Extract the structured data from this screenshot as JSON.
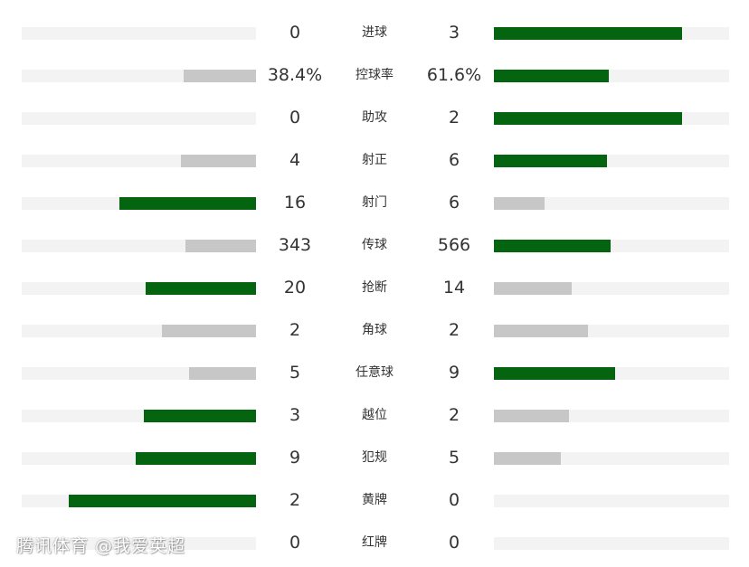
{
  "colors": {
    "leading": "#056410",
    "trailing": "#c7c7c7",
    "track": "#f3f3f3"
  },
  "stats": [
    {
      "label": "进球",
      "home": "0",
      "away": "3",
      "home_share": 0,
      "away_share": 0.8,
      "home_lead": false,
      "away_lead": true
    },
    {
      "label": "控球率",
      "home": "38.4%",
      "away": "61.6%",
      "home_share": 0.31,
      "away_share": 0.49,
      "home_lead": false,
      "away_lead": true
    },
    {
      "label": "助攻",
      "home": "0",
      "away": "2",
      "home_share": 0,
      "away_share": 0.8,
      "home_lead": false,
      "away_lead": true
    },
    {
      "label": "射正",
      "home": "4",
      "away": "6",
      "home_share": 0.32,
      "away_share": 0.48,
      "home_lead": false,
      "away_lead": true
    },
    {
      "label": "射门",
      "home": "16",
      "away": "6",
      "home_share": 0.585,
      "away_share": 0.215,
      "home_lead": true,
      "away_lead": false
    },
    {
      "label": "传球",
      "home": "343",
      "away": "566",
      "home_share": 0.3,
      "away_share": 0.495,
      "home_lead": false,
      "away_lead": true
    },
    {
      "label": "抢断",
      "home": "20",
      "away": "14",
      "home_share": 0.47,
      "away_share": 0.33,
      "home_lead": true,
      "away_lead": false
    },
    {
      "label": "角球",
      "home": "2",
      "away": "2",
      "home_share": 0.4,
      "away_share": 0.4,
      "home_lead": false,
      "away_lead": false
    },
    {
      "label": "任意球",
      "home": "5",
      "away": "9",
      "home_share": 0.285,
      "away_share": 0.515,
      "home_lead": false,
      "away_lead": true
    },
    {
      "label": "越位",
      "home": "3",
      "away": "2",
      "home_share": 0.48,
      "away_share": 0.32,
      "home_lead": true,
      "away_lead": false
    },
    {
      "label": "犯规",
      "home": "9",
      "away": "5",
      "home_share": 0.515,
      "away_share": 0.285,
      "home_lead": true,
      "away_lead": false
    },
    {
      "label": "黄牌",
      "home": "2",
      "away": "0",
      "home_share": 0.8,
      "away_share": 0,
      "home_lead": true,
      "away_lead": false
    },
    {
      "label": "红牌",
      "home": "0",
      "away": "0",
      "home_share": 0,
      "away_share": 0,
      "home_lead": false,
      "away_lead": false
    }
  ],
  "watermark": "腾讯体育 @我爱英超"
}
